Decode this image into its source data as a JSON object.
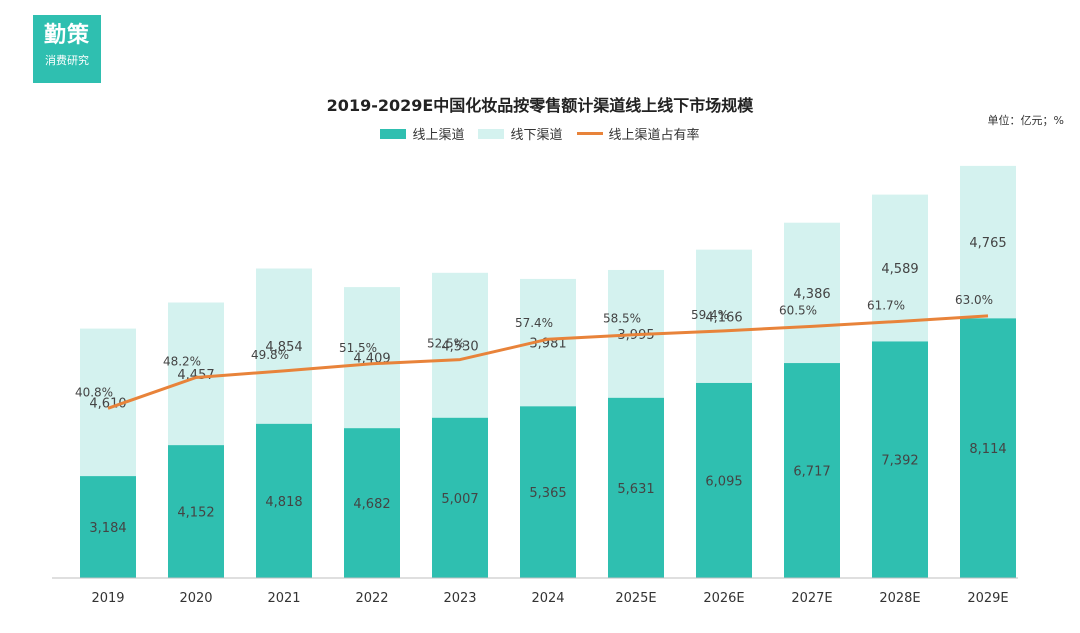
{
  "logo": {
    "main": "勤策",
    "sub": "消费研究"
  },
  "colors": {
    "online": "#2fbfb0",
    "offline": "#d4f2ef",
    "line": "#e8833a"
  },
  "chart_data": {
    "type": "bar",
    "stacked": true,
    "title": "2019-2029E中国化妆品按零售额计渠道线上线下市场规模",
    "unit": "单位：亿元；%",
    "categories": [
      "2019",
      "2020",
      "2021",
      "2022",
      "2023",
      "2024",
      "2025E",
      "2026E",
      "2027E",
      "2028E",
      "2029E"
    ],
    "series": [
      {
        "name": "线上渠道",
        "values": [
          3184,
          4152,
          4818,
          4682,
          5007,
          5365,
          5631,
          6095,
          6717,
          7392,
          8114
        ],
        "labels": [
          "3,184",
          "4,152",
          "4,818",
          "4,682",
          "5,007",
          "5,365",
          "5,631",
          "6,095",
          "6,717",
          "7,392",
          "8,114"
        ]
      },
      {
        "name": "线下渠道",
        "values": [
          4610,
          4457,
          4854,
          4409,
          4530,
          3981,
          3995,
          4166,
          4386,
          4589,
          4765
        ],
        "labels": [
          "4,610",
          "4,457",
          "4,854",
          "4,409",
          "4,530",
          "3,981",
          "3,995",
          "4,166",
          "4,386",
          "4,589",
          "4,765"
        ]
      }
    ],
    "line_series": {
      "name": "线上渠道占有率",
      "values": [
        40.8,
        48.2,
        49.8,
        51.5,
        52.5,
        57.4,
        58.5,
        59.4,
        60.5,
        61.7,
        63.0
      ],
      "labels": [
        "40.8%",
        "48.2%",
        "49.8%",
        "51.5%",
        "52.5%",
        "57.4%",
        "58.5%",
        "59.4%",
        "60.5%",
        "61.7%",
        "63.0%"
      ]
    },
    "ylim": [
      0,
      13000
    ],
    "line_ylim": [
      0,
      100
    ],
    "legend_position": "top-center"
  }
}
